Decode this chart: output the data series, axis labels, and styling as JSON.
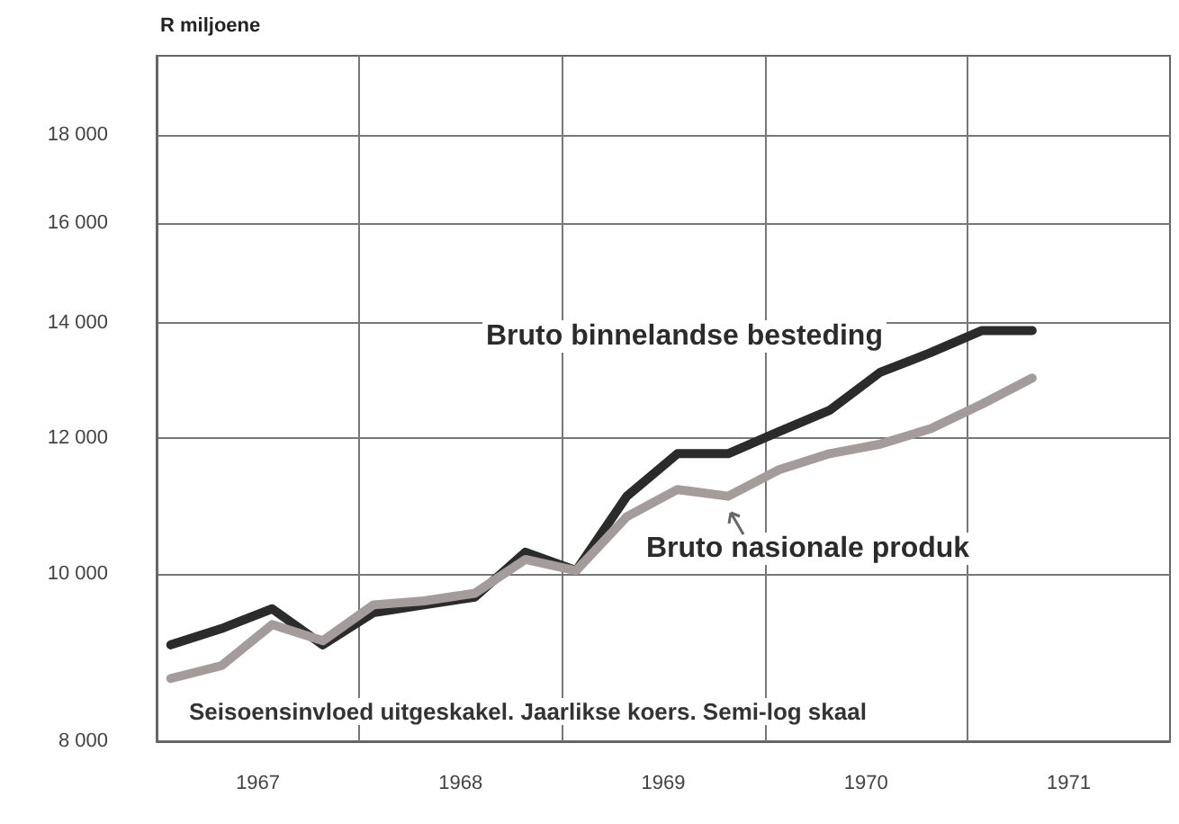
{
  "chart_data": {
    "type": "line",
    "ylabel": "R miljoene",
    "x": [
      1967.07,
      1967.32,
      1967.57,
      1967.82,
      1968.07,
      1968.32,
      1968.57,
      1968.82,
      1969.07,
      1969.32,
      1969.57,
      1969.82,
      1970.07,
      1970.32,
      1970.57,
      1970.82,
      1971.07,
      1971.32
    ],
    "series": [
      {
        "name": "Bruto binnelandse besteding",
        "color": "#2b2b2b",
        "values": [
          9100,
          9300,
          9550,
          9100,
          9500,
          9600,
          9700,
          10300,
          10050,
          11100,
          11750,
          11750,
          12100,
          12450,
          13100,
          13450,
          13850,
          13850
        ]
      },
      {
        "name": "Bruto nasionale produk",
        "color": "#a39c9a",
        "values": [
          8700,
          8850,
          9350,
          9150,
          9600,
          9650,
          9750,
          10200,
          10050,
          10800,
          11200,
          11100,
          11500,
          11750,
          11900,
          12150,
          12550,
          13000
        ]
      }
    ],
    "xlim": [
      1967,
      1972
    ],
    "xticks": [
      {
        "value": 1967.5,
        "label": "1967"
      },
      {
        "value": 1968,
        "label": null
      },
      {
        "value": 1968.5,
        "label": "1968"
      },
      {
        "value": 1969,
        "label": null
      },
      {
        "value": 1969.5,
        "label": "1969"
      },
      {
        "value": 1970,
        "label": null
      },
      {
        "value": 1970.5,
        "label": "1970"
      },
      {
        "value": 1971,
        "label": null
      },
      {
        "value": 1971.5,
        "label": "1971"
      }
    ],
    "ylim": [
      8000,
      20000
    ],
    "yticks": [
      {
        "value": 8000,
        "label": "8 000"
      },
      {
        "value": 10000,
        "label": "10 000"
      },
      {
        "value": 12000,
        "label": "12 000"
      },
      {
        "value": 14000,
        "label": "14 000"
      },
      {
        "value": 16000,
        "label": "16 000"
      },
      {
        "value": 18000,
        "label": "18 000"
      }
    ],
    "log": "y",
    "grid": true,
    "legend": false,
    "marker": "none",
    "line_style": "solid",
    "annotations": [
      "Seisoensinvloed uitgeskakel. Jaarlikse koers. Semi-log skaal"
    ]
  }
}
